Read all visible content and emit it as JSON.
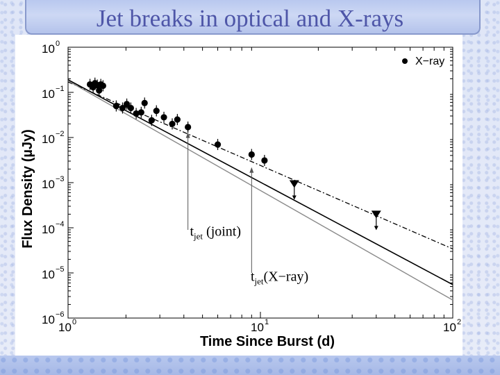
{
  "slide": {
    "title": "Jet breaks in optical and X-rays"
  },
  "chart_data": {
    "type": "scatter",
    "title": "",
    "xlabel": "Time Since Burst (d)",
    "ylabel": "Flux Density (µJy)",
    "xscale": "log",
    "yscale": "log",
    "xlim": [
      1,
      100
    ],
    "ylim": [
      1e-06,
      1
    ],
    "x_ticks": [
      {
        "base": "10",
        "exp": "0",
        "value": 1
      },
      {
        "base": "10",
        "exp": "1",
        "value": 10
      },
      {
        "base": "10",
        "exp": "2",
        "value": 100
      }
    ],
    "y_ticks": [
      {
        "base": "10",
        "exp": "0",
        "value": 1
      },
      {
        "base": "10",
        "exp": "−1",
        "value": 0.1
      },
      {
        "base": "10",
        "exp": "−2",
        "value": 0.01
      },
      {
        "base": "10",
        "exp": "−3",
        "value": 0.001
      },
      {
        "base": "10",
        "exp": "−4",
        "value": 0.0001
      },
      {
        "base": "10",
        "exp": "−5",
        "value": 1e-05
      },
      {
        "base": "10",
        "exp": "−6",
        "value": 1e-06
      }
    ],
    "legend": {
      "position": "top-right",
      "entries": [
        {
          "label": "X−ray",
          "marker": "filled-circle"
        }
      ]
    },
    "series": [
      {
        "name": "X−ray",
        "points": [
          {
            "x": 1.3,
            "y": 0.15
          },
          {
            "x": 1.35,
            "y": 0.13
          },
          {
            "x": 1.38,
            "y": 0.16
          },
          {
            "x": 1.42,
            "y": 0.145
          },
          {
            "x": 1.45,
            "y": 0.11
          },
          {
            "x": 1.48,
            "y": 0.15
          },
          {
            "x": 1.52,
            "y": 0.14
          },
          {
            "x": 1.78,
            "y": 0.05
          },
          {
            "x": 1.92,
            "y": 0.045
          },
          {
            "x": 2.02,
            "y": 0.055
          },
          {
            "x": 2.12,
            "y": 0.045
          },
          {
            "x": 2.26,
            "y": 0.034
          },
          {
            "x": 2.4,
            "y": 0.036
          },
          {
            "x": 2.5,
            "y": 0.058
          },
          {
            "x": 2.72,
            "y": 0.024
          },
          {
            "x": 2.88,
            "y": 0.039
          },
          {
            "x": 3.15,
            "y": 0.028
          },
          {
            "x": 3.48,
            "y": 0.02
          },
          {
            "x": 3.7,
            "y": 0.025
          },
          {
            "x": 4.2,
            "y": 0.017
          },
          {
            "x": 6.0,
            "y": 0.007
          },
          {
            "x": 9.0,
            "y": 0.0042
          },
          {
            "x": 10.5,
            "y": 0.0031
          }
        ],
        "upper_limits": [
          {
            "x": 15.0,
            "y": 0.00095
          },
          {
            "x": 40.0,
            "y": 0.0002
          }
        ]
      }
    ],
    "fit_lines": [
      {
        "name": "joint fit",
        "style": "solid-black",
        "points": [
          [
            1,
            0.19
          ],
          [
            100,
            5.5e-06
          ]
        ]
      },
      {
        "name": "X-ray fit",
        "style": "dash-dot",
        "points": [
          [
            1,
            0.17
          ],
          [
            100,
            3.4e-05
          ]
        ]
      },
      {
        "name": "optical fit",
        "style": "solid-gray",
        "points": [
          [
            1,
            0.18
          ],
          [
            100,
            2.5e-06
          ]
        ]
      }
    ],
    "annotations": [
      {
        "name": "tjet-joint",
        "base": "t",
        "sub": "jet",
        "rest": " (joint)",
        "arrow_x": 4.2,
        "arrow_y": 0.013,
        "arrow_y0": 9e-05,
        "text_x": 4.3,
        "text_y": 6.7e-05
      },
      {
        "name": "tjet-xray",
        "base": "t",
        "sub": "jet",
        "rest": "(X−ray)",
        "arrow_x": 9.0,
        "arrow_y": 0.0022,
        "arrow_y0": 1e-05,
        "text_x": 8.9,
        "text_y": 6.6e-06
      }
    ]
  }
}
